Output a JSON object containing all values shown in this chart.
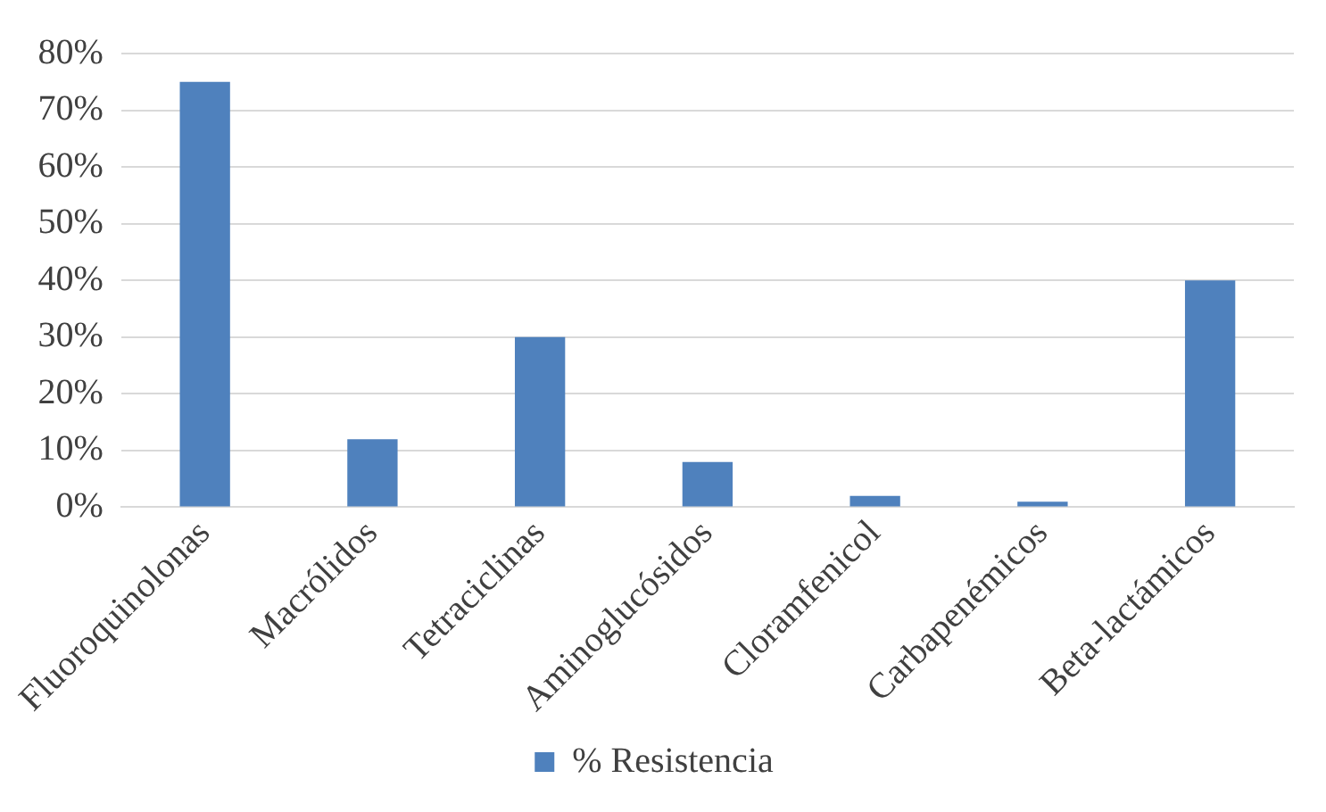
{
  "chart_data": {
    "type": "bar",
    "categories": [
      "Fluoroquinolonas",
      "Macrólidos",
      "Tetraciclinas",
      "Aminoglucósidos",
      "Cloramfenicol",
      "Carbapenémicos",
      "Beta-lactámicos"
    ],
    "series": [
      {
        "name": "% Resistencia",
        "color": "#4f81bd",
        "values": [
          75,
          12,
          30,
          8,
          2,
          1,
          40
        ]
      }
    ],
    "ylim": [
      0,
      80
    ],
    "yticks": [
      {
        "value": 0,
        "label": "0%"
      },
      {
        "value": 10,
        "label": "10%"
      },
      {
        "value": 20,
        "label": "20%"
      },
      {
        "value": 30,
        "label": "30%"
      },
      {
        "value": 40,
        "label": "40%"
      },
      {
        "value": 50,
        "label": "50%"
      },
      {
        "value": 60,
        "label": "60%"
      },
      {
        "value": 70,
        "label": "70%"
      },
      {
        "value": 80,
        "label": "80%"
      }
    ],
    "grid": "y",
    "legend": "bottom"
  }
}
